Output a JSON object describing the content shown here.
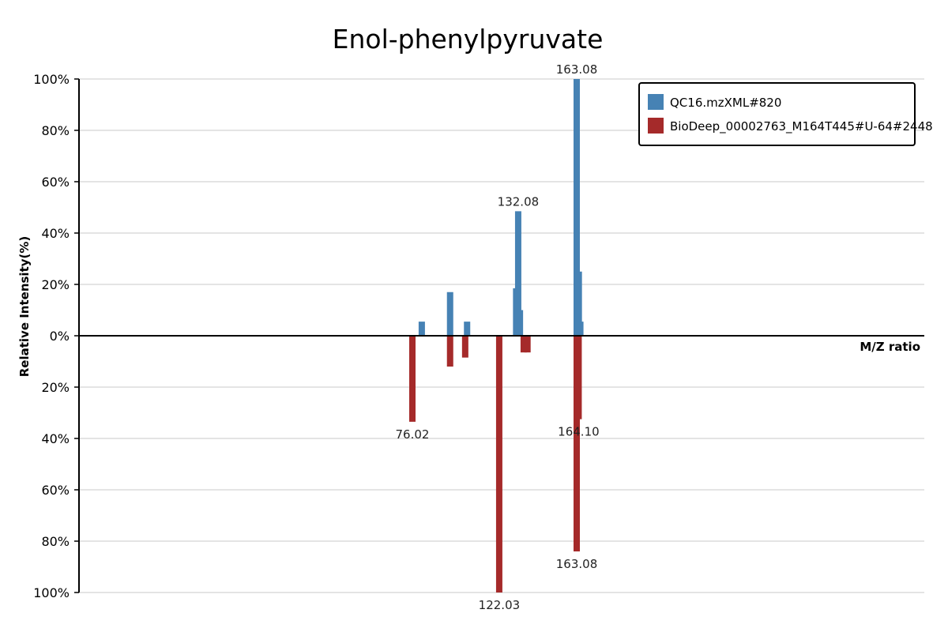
{
  "chart_data": {
    "type": "bar",
    "title": "Enol-phenylpyruvate",
    "xlabel": "M/Z ratio",
    "ylabel": "Relative Intensity(%)",
    "ylim": [
      -100,
      100
    ],
    "yticks": [
      {
        "value": 100,
        "label": "100%"
      },
      {
        "value": 80,
        "label": "80%"
      },
      {
        "value": 60,
        "label": "60%"
      },
      {
        "value": 40,
        "label": "40%"
      },
      {
        "value": 20,
        "label": "20%"
      },
      {
        "value": 0,
        "label": "0%"
      },
      {
        "value": -20,
        "label": "20%"
      },
      {
        "value": -40,
        "label": "40%"
      },
      {
        "value": -60,
        "label": "60%"
      },
      {
        "value": -80,
        "label": "80%"
      },
      {
        "value": -100,
        "label": "100%"
      }
    ],
    "grid": true,
    "legend_position": "top-right",
    "series": [
      {
        "name": "QC16.mzXML#820",
        "color": "#4682b4",
        "direction": "up",
        "peaks": [
          {
            "mz": 81.0,
            "intensity": 5.5
          },
          {
            "mz": 96.0,
            "intensity": 17.0
          },
          {
            "mz": 105.0,
            "intensity": 5.5
          },
          {
            "mz": 131.0,
            "intensity": 18.5
          },
          {
            "mz": 132.08,
            "intensity": 48.5,
            "label": "132.08"
          },
          {
            "mz": 133.0,
            "intensity": 10.0
          },
          {
            "mz": 163.08,
            "intensity": 100.0,
            "label": "163.08"
          },
          {
            "mz": 164.2,
            "intensity": 25.0
          },
          {
            "mz": 165.0,
            "intensity": 5.5
          }
        ]
      },
      {
        "name": "BioDeep_00002763_M164T445#U-64#2448",
        "color": "#a52a2a",
        "direction": "down",
        "peaks": [
          {
            "mz": 76.02,
            "intensity": 33.5,
            "label": "76.02"
          },
          {
            "mz": 96.0,
            "intensity": 12.0
          },
          {
            "mz": 104.0,
            "intensity": 8.5
          },
          {
            "mz": 122.03,
            "intensity": 100.0,
            "label": "122.03"
          },
          {
            "mz": 135.0,
            "intensity": 6.5
          },
          {
            "mz": 137.0,
            "intensity": 6.5
          },
          {
            "mz": 163.08,
            "intensity": 84.0,
            "label": "163.08"
          },
          {
            "mz": 164.1,
            "intensity": 32.5,
            "label": "164.10"
          }
        ]
      }
    ]
  }
}
